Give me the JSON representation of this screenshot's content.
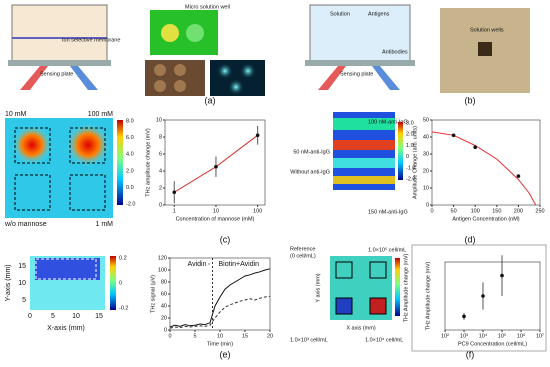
{
  "panels": {
    "a": {
      "label": "(a)",
      "texts": [
        "Ion selective membrane",
        "Sensing plate",
        "Micro solution well"
      ]
    },
    "b": {
      "label": "(b)",
      "texts": [
        "Solution",
        "Antigens",
        "Antibodies",
        "Sensing plate",
        "Solution wells"
      ]
    },
    "c": {
      "label": "(c)",
      "heatmap_labels": [
        "10 mM",
        "100 mM",
        "w/o mannose",
        "1 mM"
      ],
      "colorbar": [
        "8.0",
        "6.0",
        "4.0",
        "2.0",
        "0.0",
        "-2.0"
      ]
    },
    "d": {
      "label": "(d)",
      "heatmap_labels": [
        "100 nM-anti-IgG",
        "50 nM-anti-IgG",
        "Without anti-IgG",
        "150 nM-anti-IgG"
      ],
      "colorbar": [
        "3.0",
        "2.0",
        "1.0",
        "0",
        "-1.0",
        "-2.0"
      ]
    },
    "e": {
      "label": "(e)",
      "xlabel": "X-axis (mm)",
      "ylabel": "Y-axis (mm)",
      "xticks": [
        "0",
        "5",
        "10",
        "15"
      ],
      "yticks": [
        "5",
        "10",
        "15"
      ],
      "colorbar": [
        "0.2",
        "0",
        "-0.2"
      ]
    },
    "f": {
      "label": "(f)",
      "heatmap_labels": [
        "Reference",
        "(0 cell/mL)",
        "1.0×10⁵ cell/mL",
        "1.0×10³ cell/mL",
        "1.0×10⁴ cell/mL"
      ],
      "xlabel": "X axis (mm)",
      "ylabel": "Y axis (mm)",
      "colorbar_label": "THz Amplitude change (mV)"
    }
  },
  "chart_data": [
    {
      "type": "scatter",
      "xlabel": "Concentration of mannose (mM)",
      "ylabel": "THz amplitude change (mV)",
      "xlog": true,
      "xlim": [
        0.6,
        150
      ],
      "xticks": [
        1,
        10,
        100
      ],
      "ylim": [
        0,
        10
      ],
      "yticks": [
        0,
        2,
        4,
        6,
        8,
        10
      ],
      "series": [
        {
          "color": "#d62020",
          "mode": "line",
          "x": [
            1,
            10,
            100
          ],
          "values": [
            1.5,
            4.5,
            8.2
          ]
        },
        {
          "color": "#111111",
          "mode": "markers",
          "x": [
            1,
            10,
            100
          ],
          "values": [
            1.5,
            4.5,
            8.2
          ],
          "errors": [
            1.3,
            1.2,
            1.1
          ]
        }
      ]
    },
    {
      "type": "scatter",
      "xlabel": "Antigen Concentration (nM)",
      "ylabel": "Amplitude Change (arb. units)",
      "xlim": [
        0,
        250
      ],
      "xticks": [
        0,
        50,
        100,
        150,
        200,
        250
      ],
      "ylim": [
        0,
        50
      ],
      "yticks": [
        0,
        10,
        20,
        30,
        40,
        50
      ],
      "series": [
        {
          "color": "#e03030",
          "mode": "line",
          "x": [
            0,
            50,
            100,
            150,
            200,
            225,
            240
          ],
          "values": [
            43,
            41,
            35,
            27,
            15,
            7,
            0
          ]
        },
        {
          "color": "#111111",
          "mode": "markers",
          "x": [
            50,
            100,
            200
          ],
          "values": [
            41,
            34,
            17
          ]
        }
      ]
    },
    {
      "type": "line",
      "xlabel": "Time (min)",
      "ylabel": "THz signal (μV)",
      "xlim": [
        0,
        20
      ],
      "xticks": [
        0,
        5,
        10,
        15,
        20
      ],
      "ylim": [
        0,
        120
      ],
      "yticks": [
        0,
        20,
        40,
        60,
        80,
        100,
        120
      ],
      "vline": 8.5,
      "annotations": [
        "Avidin",
        "Biotin+Avidin"
      ],
      "series": [
        {
          "color": "#111111",
          "mode": "line",
          "x": [
            0,
            1,
            2,
            3,
            4,
            5,
            6,
            7,
            8,
            9,
            10,
            11,
            12,
            13,
            14,
            15,
            16,
            17,
            18,
            19,
            20
          ],
          "values": [
            5,
            8,
            6,
            9,
            7,
            8,
            10,
            9,
            12,
            40,
            55,
            68,
            75,
            80,
            85,
            90,
            92,
            95,
            97,
            100,
            102
          ]
        },
        {
          "color": "#333333",
          "mode": "line",
          "dash": true,
          "x": [
            0,
            1,
            2,
            3,
            4,
            5,
            6,
            7,
            8,
            9,
            10,
            11,
            12,
            13,
            14,
            15,
            16,
            17,
            18,
            19,
            20
          ],
          "values": [
            3,
            5,
            4,
            6,
            5,
            6,
            7,
            6,
            8,
            20,
            30,
            38,
            42,
            45,
            48,
            50,
            52,
            50,
            53,
            55,
            56
          ]
        }
      ]
    },
    {
      "type": "scatter",
      "xlabel": "PC9 Concentration (cell/mL)",
      "ylabel": "THz Amplitude change (mV)",
      "xlog": true,
      "xlim": [
        100,
        10000000
      ],
      "xticks": [
        {
          "value": 100,
          "label": "10²"
        },
        {
          "value": 1000,
          "label": "10³"
        },
        {
          "value": 10000,
          "label": "10⁴"
        },
        {
          "value": 100000,
          "label": "10⁵"
        },
        {
          "value": 1000000,
          "label": "10⁶"
        },
        {
          "value": 10000000,
          "label": "10⁷"
        }
      ],
      "ylim": [
        0,
        1
      ],
      "series": [
        {
          "color": "#111111",
          "mode": "markers",
          "x": [
            1000,
            10000,
            100000
          ],
          "values": [
            0.2,
            0.5,
            0.8
          ],
          "errors": [
            0.05,
            0.2,
            0.3
          ]
        }
      ]
    }
  ]
}
